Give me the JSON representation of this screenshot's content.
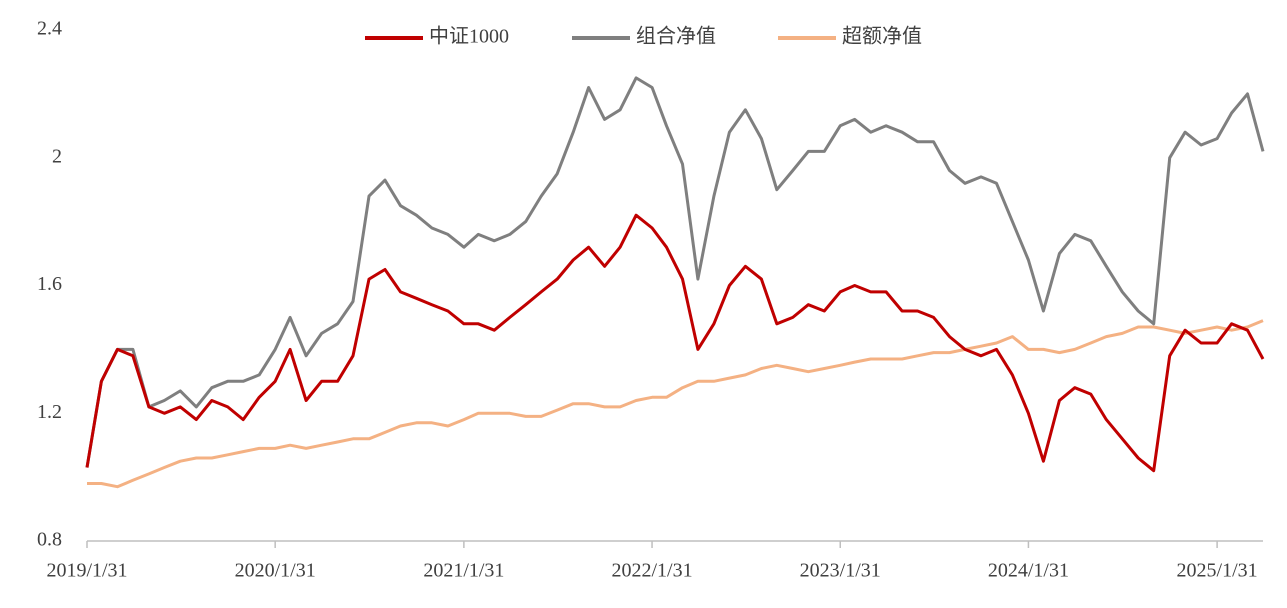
{
  "chart_data": {
    "type": "line",
    "x": [
      "2019/1/31",
      "2019/2/28",
      "2019/3/31",
      "2019/4/30",
      "2019/5/31",
      "2019/6/30",
      "2019/7/31",
      "2019/8/31",
      "2019/9/30",
      "2019/10/31",
      "2019/11/30",
      "2019/12/31",
      "2020/1/31",
      "2020/2/29",
      "2020/3/31",
      "2020/4/30",
      "2020/5/31",
      "2020/6/30",
      "2020/7/31",
      "2020/8/31",
      "2020/9/30",
      "2020/10/31",
      "2020/11/30",
      "2020/12/31",
      "2021/1/31",
      "2021/2/28",
      "2021/3/31",
      "2021/4/30",
      "2021/5/31",
      "2021/6/30",
      "2021/7/31",
      "2021/8/31",
      "2021/9/30",
      "2021/10/31",
      "2021/11/30",
      "2021/12/31",
      "2022/1/31",
      "2022/2/28",
      "2022/3/31",
      "2022/4/30",
      "2022/5/31",
      "2022/6/30",
      "2022/7/31",
      "2022/8/31",
      "2022/9/30",
      "2022/10/31",
      "2022/11/30",
      "2022/12/31",
      "2023/1/31",
      "2023/2/28",
      "2023/3/31",
      "2023/4/30",
      "2023/5/31",
      "2023/6/30",
      "2023/7/31",
      "2023/8/31",
      "2023/9/30",
      "2023/10/31",
      "2023/11/30",
      "2023/12/31",
      "2024/1/31",
      "2024/2/29",
      "2024/3/31",
      "2024/4/30",
      "2024/5/31",
      "2024/6/30",
      "2024/7/31",
      "2024/8/31",
      "2024/9/30",
      "2024/10/31",
      "2024/11/30",
      "2024/12/31",
      "2025/1/31",
      "2025/2/28",
      "2025/3/31",
      "2025/4/30"
    ],
    "series": [
      {
        "name": "中证1000",
        "color": "#c00000",
        "values": [
          1.03,
          1.3,
          1.4,
          1.38,
          1.22,
          1.2,
          1.22,
          1.18,
          1.24,
          1.22,
          1.18,
          1.25,
          1.3,
          1.4,
          1.24,
          1.3,
          1.3,
          1.38,
          1.62,
          1.65,
          1.58,
          1.56,
          1.54,
          1.52,
          1.48,
          1.48,
          1.46,
          1.5,
          1.54,
          1.58,
          1.62,
          1.68,
          1.72,
          1.66,
          1.72,
          1.82,
          1.78,
          1.72,
          1.62,
          1.4,
          1.48,
          1.6,
          1.66,
          1.62,
          1.48,
          1.5,
          1.54,
          1.52,
          1.58,
          1.6,
          1.58,
          1.58,
          1.52,
          1.52,
          1.5,
          1.44,
          1.4,
          1.38,
          1.4,
          1.32,
          1.2,
          1.05,
          1.24,
          1.28,
          1.26,
          1.18,
          1.12,
          1.06,
          1.02,
          1.38,
          1.46,
          1.42,
          1.42,
          1.48,
          1.46,
          1.37
        ]
      },
      {
        "name": "组合净值",
        "color": "#7f7f7f",
        "values": [
          1.03,
          1.3,
          1.4,
          1.4,
          1.22,
          1.24,
          1.27,
          1.22,
          1.28,
          1.3,
          1.3,
          1.32,
          1.4,
          1.5,
          1.38,
          1.45,
          1.48,
          1.55,
          1.88,
          1.93,
          1.85,
          1.82,
          1.78,
          1.76,
          1.72,
          1.76,
          1.74,
          1.76,
          1.8,
          1.88,
          1.95,
          2.08,
          2.22,
          2.12,
          2.15,
          2.25,
          2.22,
          2.1,
          1.98,
          1.62,
          1.88,
          2.08,
          2.15,
          2.06,
          1.9,
          1.96,
          2.02,
          2.02,
          2.1,
          2.12,
          2.08,
          2.1,
          2.08,
          2.05,
          2.05,
          1.96,
          1.92,
          1.94,
          1.92,
          1.8,
          1.68,
          1.52,
          1.7,
          1.76,
          1.74,
          1.66,
          1.58,
          1.52,
          1.48,
          2.0,
          2.08,
          2.04,
          2.06,
          2.14,
          2.2,
          2.02
        ]
      },
      {
        "name": "超额净值",
        "color": "#f4b183",
        "values": [
          0.98,
          0.98,
          0.97,
          0.99,
          1.01,
          1.03,
          1.05,
          1.06,
          1.06,
          1.07,
          1.08,
          1.09,
          1.09,
          1.1,
          1.09,
          1.1,
          1.11,
          1.12,
          1.12,
          1.14,
          1.16,
          1.17,
          1.17,
          1.16,
          1.18,
          1.2,
          1.2,
          1.2,
          1.19,
          1.19,
          1.21,
          1.23,
          1.23,
          1.22,
          1.22,
          1.24,
          1.25,
          1.25,
          1.28,
          1.3,
          1.3,
          1.31,
          1.32,
          1.34,
          1.35,
          1.34,
          1.33,
          1.34,
          1.35,
          1.36,
          1.37,
          1.37,
          1.37,
          1.38,
          1.39,
          1.39,
          1.4,
          1.41,
          1.42,
          1.44,
          1.4,
          1.4,
          1.39,
          1.4,
          1.42,
          1.44,
          1.45,
          1.47,
          1.47,
          1.46,
          1.45,
          1.46,
          1.47,
          1.46,
          1.47,
          1.49
        ]
      }
    ],
    "xlim": [
      "2019/1/31",
      "2025/4/30"
    ],
    "xticks": [
      "2019/1/31",
      "2020/1/31",
      "2021/1/31",
      "2022/1/31",
      "2023/1/31",
      "2024/1/31",
      "2025/1/31"
    ],
    "ylim": [
      0.8,
      2.4
    ],
    "yticks": [
      0.8,
      1.2,
      1.6,
      2,
      2.4
    ],
    "grid": false,
    "legend": "top"
  }
}
